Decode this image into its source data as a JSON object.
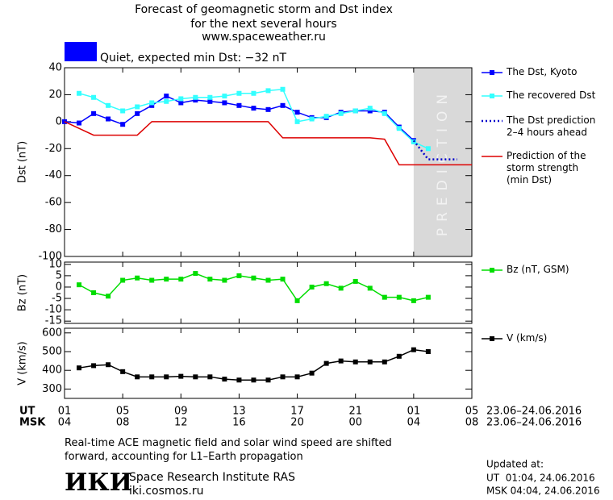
{
  "header": {
    "title_lines": [
      "Forecast of geomagnetic storm and Dst index",
      "for the next several hours",
      "www.spaceweather.ru"
    ]
  },
  "status": {
    "color": "#0000ff",
    "text": "Quiet, expected min Dst: −32 nT"
  },
  "chart_data": [
    {
      "type": "line",
      "ylabel": "Dst (nT)",
      "xlim": [
        0,
        28
      ],
      "ylim": [
        -100,
        40
      ],
      "yticks": [
        40,
        20,
        0,
        -20,
        -40,
        -60,
        -80,
        -100
      ],
      "prediction_region": {
        "label": "PREDICTION",
        "xlim": [
          24,
          28
        ],
        "color": "#d9d9d9"
      },
      "series": [
        {
          "name": "The Dst, Kyoto",
          "color": "#0000ff",
          "marker": "square",
          "line_style": "solid",
          "x": [
            0,
            1,
            2,
            3,
            4,
            5,
            6,
            7,
            8,
            9,
            10,
            11,
            12,
            13,
            14,
            15,
            16,
            17,
            18,
            19,
            20,
            21,
            22,
            23,
            24
          ],
          "values": [
            0,
            -1,
            6,
            2,
            -2,
            6,
            12,
            19,
            14,
            16,
            15,
            14,
            12,
            10,
            9,
            12,
            7,
            3,
            3,
            7,
            8,
            8,
            7,
            -4,
            -14
          ]
        },
        {
          "name": "The recovered Dst",
          "color": "#33ffff",
          "marker": "square",
          "line_style": "solid",
          "x": [
            1,
            2,
            3,
            4,
            5,
            6,
            7,
            8,
            9,
            10,
            11,
            12,
            13,
            14,
            15,
            16,
            17,
            18,
            19,
            20,
            21,
            22,
            23,
            24,
            25
          ],
          "values": [
            21,
            18,
            12,
            8,
            11,
            14,
            15,
            17,
            18,
            18,
            19,
            21,
            21,
            23,
            24,
            0,
            2,
            4,
            6,
            8,
            10,
            6,
            -5,
            -15,
            -20
          ]
        },
        {
          "name": "The Dst prediction\n2–4 hours ahead",
          "color": "#0000cc",
          "marker": "none",
          "line_style": "dotted",
          "x": [
            24,
            25,
            26,
            27
          ],
          "values": [
            -14,
            -28,
            -28,
            -28
          ]
        },
        {
          "name": "Prediction of the\nstorm strength\n(min Dst)",
          "color": "#dd0000",
          "marker": "none",
          "line_style": "solid",
          "x": [
            0,
            2,
            5,
            6,
            14,
            15,
            21,
            22,
            23,
            28
          ],
          "values": [
            0,
            -10,
            -10,
            0,
            0,
            -12,
            -12,
            -13,
            -32,
            -32
          ]
        }
      ]
    },
    {
      "type": "line",
      "ylabel": "Bz (nT)",
      "xlim": [
        0,
        28
      ],
      "ylim": [
        -16,
        11
      ],
      "yticks": [
        10,
        5,
        0,
        -5,
        -10,
        -15
      ],
      "series": [
        {
          "name": "Bz (nT, GSM)",
          "color": "#00dd00",
          "marker": "square",
          "line_style": "solid",
          "x": [
            1,
            2,
            3,
            4,
            5,
            6,
            7,
            8,
            9,
            10,
            11,
            12,
            13,
            14,
            15,
            16,
            17,
            18,
            19,
            20,
            21,
            22,
            23,
            24,
            25
          ],
          "values": [
            1,
            -2.5,
            -4,
            3,
            4,
            3,
            3.5,
            3.5,
            6,
            3.5,
            3,
            5,
            4,
            3,
            3.5,
            -6,
            0,
            1.5,
            -0.5,
            2.5,
            -0.5,
            -4.5,
            -4.5,
            -6,
            -4.5
          ]
        }
      ]
    },
    {
      "type": "line",
      "ylabel": "V (km/s)",
      "xlim": [
        0,
        28
      ],
      "ylim": [
        250,
        625
      ],
      "yticks": [
        600,
        500,
        400,
        300
      ],
      "x_label": "UT",
      "x2_label": "MSK",
      "x_range_label": "23.06–24.06.2016",
      "x2_range_label": "23.06–24.06.2016",
      "xticks": [
        {
          "value": 0,
          "label": "01"
        },
        {
          "value": 4,
          "label": "05"
        },
        {
          "value": 8,
          "label": "09"
        },
        {
          "value": 12,
          "label": "13"
        },
        {
          "value": 16,
          "label": "17"
        },
        {
          "value": 20,
          "label": "21"
        },
        {
          "value": 24,
          "label": "01"
        },
        {
          "value": 28,
          "label": "05"
        }
      ],
      "x2ticks": [
        {
          "value": 0,
          "label": "04"
        },
        {
          "value": 4,
          "label": "08"
        },
        {
          "value": 8,
          "label": "12"
        },
        {
          "value": 12,
          "label": "16"
        },
        {
          "value": 16,
          "label": "20"
        },
        {
          "value": 20,
          "label": "00"
        },
        {
          "value": 24,
          "label": "04"
        },
        {
          "value": 28,
          "label": "08"
        }
      ],
      "series": [
        {
          "name": "V (km/s)",
          "color": "#000000",
          "marker": "square",
          "line_style": "solid",
          "x": [
            1,
            2,
            3,
            4,
            5,
            6,
            7,
            8,
            9,
            10,
            11,
            12,
            13,
            14,
            15,
            16,
            17,
            18,
            19,
            20,
            21,
            22,
            23,
            24,
            25
          ],
          "values": [
            413,
            425,
            430,
            393,
            365,
            365,
            365,
            368,
            365,
            365,
            353,
            348,
            348,
            348,
            365,
            365,
            385,
            437,
            450,
            445,
            445,
            445,
            475,
            510,
            500
          ]
        }
      ]
    }
  ],
  "footer": {
    "note": "Real-time ACE magnetic field and solar wind speed are shifted\nforward, accounting for L1–Earth propagation",
    "logo": "ИКИ",
    "institute": "Space Research Institute RAS",
    "website": "iki.cosmos.ru",
    "updated_label": "Updated at:",
    "updated_ut": "UT  01:04, 24.06.2016",
    "updated_msk": "MSK 04:04, 24.06.2016"
  }
}
